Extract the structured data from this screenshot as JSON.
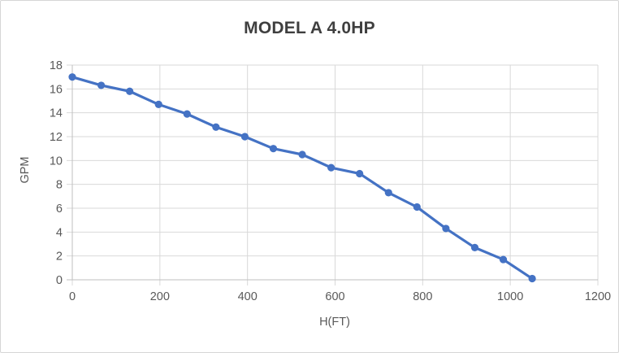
{
  "chart_data": {
    "type": "line",
    "title": "MODEL A 4.0HP",
    "xlabel": "H(FT)",
    "ylabel": "GPM",
    "xlim": [
      0,
      1200
    ],
    "ylim": [
      0,
      18
    ],
    "x_ticks": [
      0,
      200,
      400,
      600,
      800,
      1000,
      1200
    ],
    "y_ticks": [
      0,
      2,
      4,
      6,
      8,
      10,
      12,
      14,
      16,
      18
    ],
    "grid": true,
    "legend_position": "none",
    "series": [
      {
        "name": "MODEL A 4.0HP",
        "color": "#4472C4",
        "marker": "circle",
        "x": [
          0,
          66,
          131,
          197,
          262,
          328,
          394,
          459,
          525,
          591,
          656,
          722,
          787,
          853,
          919,
          984,
          1050
        ],
        "y": [
          17.0,
          16.3,
          15.8,
          14.7,
          13.9,
          12.8,
          12.0,
          11.0,
          10.5,
          9.4,
          8.9,
          7.3,
          6.1,
          4.3,
          2.7,
          1.7,
          0.1
        ]
      }
    ]
  },
  "colors": {
    "series": "#4472C4",
    "gridline": "#d9d9d9",
    "axis_line": "#bfbfbf",
    "tick_label": "#595959",
    "axis_title": "#595959",
    "title": "#3f3f3f",
    "border": "#d6d6d6",
    "background": "#ffffff"
  }
}
